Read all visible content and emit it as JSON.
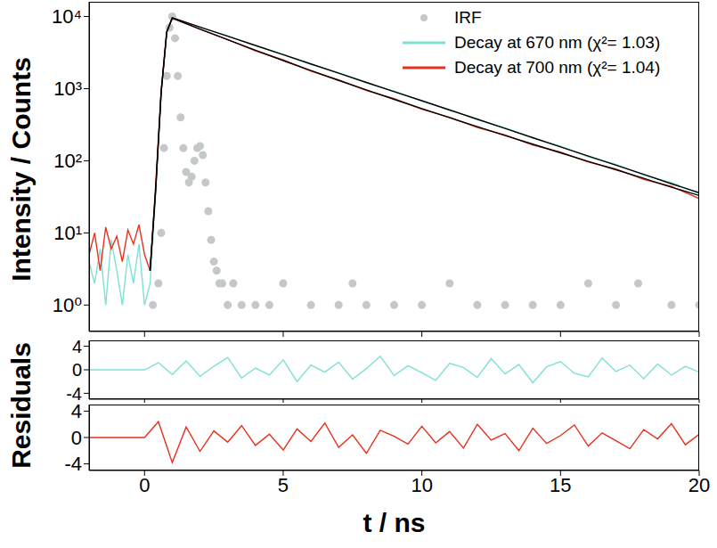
{
  "chart_data": [
    {
      "type": "line",
      "y_label": "Intensity / Counts",
      "xlim": [
        -2,
        20
      ],
      "xticks": [
        0,
        5,
        10,
        15,
        20
      ],
      "ylim": [
        0.43,
        16000
      ],
      "yticks": [
        {
          "value": 1,
          "label": "10⁰"
        },
        {
          "value": 10,
          "label": "10¹"
        },
        {
          "value": 100,
          "label": "10²"
        },
        {
          "value": 1000,
          "label": "10³"
        },
        {
          "value": 10000,
          "label": "10⁴"
        }
      ],
      "log": "y",
      "grid": false,
      "legend": "top-right",
      "tick_labels": "y",
      "series": [
        {
          "name": "IRF",
          "type": "scatter",
          "marker": "circle",
          "color": "#c4c8c8",
          "x": [
            0.3,
            0.5,
            0.6,
            0.7,
            0.8,
            0.9,
            1.0,
            1.1,
            1.2,
            1.3,
            1.4,
            1.5,
            1.6,
            1.7,
            1.8,
            1.9,
            2.0,
            2.1,
            2.2,
            2.3,
            2.4,
            2.5,
            2.6,
            2.7,
            2.8,
            3.0,
            3.2,
            3.5,
            4.0,
            4.5,
            5.0,
            6.0,
            7.0,
            7.5,
            8.0,
            9.0,
            10.0,
            11.0,
            12.0,
            13.0,
            14.0,
            15.0,
            16.0,
            17.0,
            17.8,
            19.0,
            20.0
          ],
          "values": [
            1,
            2,
            10,
            150,
            1500,
            7000,
            10000,
            5000,
            1500,
            400,
            150,
            70,
            50,
            60,
            100,
            150,
            160,
            120,
            50,
            20,
            8,
            4,
            3,
            2,
            2,
            1,
            2,
            1,
            1,
            1,
            2,
            1,
            1,
            2,
            1,
            1,
            1,
            2,
            1,
            1,
            1,
            1,
            2,
            1,
            2,
            1,
            1
          ]
        },
        {
          "name": "Decay at 670 nm (χ²= 1.03)",
          "type": "line",
          "marker": "none",
          "line_style": "solid",
          "color": "#7fe0d6",
          "x": [
            -2,
            -1.8,
            -1.6,
            -1.4,
            -1.2,
            -1,
            -0.8,
            -0.6,
            -0.4,
            -0.2,
            0,
            0.2,
            0.4,
            0.6,
            0.8,
            1,
            2,
            3,
            4,
            5,
            6,
            7,
            8,
            9,
            10,
            11,
            12,
            13,
            14,
            15,
            16,
            17,
            18,
            19,
            20
          ],
          "values": [
            4,
            2,
            6,
            1,
            8,
            3,
            1,
            5,
            2,
            7,
            1,
            2,
            35,
            900,
            6300,
            9600,
            7100,
            5380,
            3920,
            2990,
            2170,
            1660,
            1200,
            925,
            670,
            515,
            370,
            286,
            205,
            160,
            113,
            89,
            63,
            50,
            35
          ]
        },
        {
          "name": "Decay at 700 nm (χ²= 1.04)",
          "type": "line",
          "marker": "none",
          "line_style": "solid",
          "color": "#e8321e",
          "x": [
            -2,
            -1.8,
            -1.6,
            -1.4,
            -1.2,
            -1,
            -0.8,
            -0.6,
            -0.4,
            -0.2,
            0,
            0.2,
            0.4,
            0.6,
            0.8,
            1,
            2,
            3,
            4,
            5,
            6,
            7,
            8,
            9,
            10,
            11,
            12,
            13,
            14,
            15,
            16,
            17,
            18,
            19,
            20
          ],
          "values": [
            5,
            10,
            3,
            12,
            6,
            9,
            4,
            11,
            7,
            13,
            5,
            3,
            45,
            950,
            6200,
            9500,
            6650,
            4800,
            3350,
            2500,
            1750,
            1320,
            940,
            725,
            520,
            400,
            290,
            228,
            165,
            132,
            96,
            77,
            55,
            44,
            30
          ]
        },
        {
          "type": "line",
          "marker": "none",
          "line_style": "solid",
          "color": "#000000",
          "x": [
            0.2,
            0.4,
            0.6,
            0.8,
            1,
            2,
            3,
            4,
            5,
            6,
            7,
            8,
            9,
            10,
            11,
            12,
            13,
            14,
            15,
            16,
            17,
            18,
            19,
            20
          ],
          "values": [
            3,
            38,
            880,
            6100,
            9600,
            7150,
            5330,
            3970,
            2960,
            2200,
            1640,
            1220,
            910,
            680,
            505,
            377,
            281,
            209,
            156,
            116,
            87,
            65,
            48,
            36
          ]
        },
        {
          "type": "line",
          "marker": "none",
          "line_style": "solid",
          "color": "#000000",
          "x": [
            0.2,
            0.4,
            0.6,
            0.8,
            1,
            2,
            3,
            4,
            5,
            6,
            7,
            8,
            9,
            10,
            11,
            12,
            13,
            14,
            15,
            16,
            17,
            18,
            19,
            20
          ],
          "values": [
            3,
            40,
            900,
            6000,
            9500,
            6700,
            4750,
            3400,
            2450,
            1780,
            1300,
            960,
            710,
            530,
            395,
            297,
            224,
            170,
            129,
            98,
            75,
            57,
            43,
            33
          ]
        }
      ]
    },
    {
      "type": "line",
      "y_label": "Residuals",
      "xlim": [
        -2,
        20
      ],
      "xticks": [
        0,
        5,
        10,
        15,
        20
      ],
      "ylim": [
        -5,
        5
      ],
      "yticks": [
        -4,
        0,
        4
      ],
      "tick_labels": "y",
      "series": [
        {
          "type": "line",
          "marker": "none",
          "line_style": "solid",
          "color": "#7fe0d6",
          "x": [
            -2,
            0,
            0.5,
            1,
            1.5,
            2,
            2.5,
            3,
            3.5,
            4,
            4.5,
            5,
            5.5,
            6,
            6.5,
            7,
            7.5,
            8,
            8.5,
            9,
            9.5,
            10,
            10.5,
            11,
            11.5,
            12,
            12.5,
            13,
            13.5,
            14,
            14.5,
            15,
            15.5,
            16,
            16.5,
            17,
            17.5,
            18,
            18.5,
            19,
            19.5,
            20
          ],
          "values": [
            0,
            0,
            1.2,
            -0.8,
            1.5,
            -1.1,
            0.6,
            2.1,
            -1.4,
            0.3,
            -0.9,
            1.7,
            -2.0,
            0.8,
            -0.4,
            1.3,
            -1.6,
            0.2,
            2.3,
            -1.0,
            0.7,
            -0.5,
            -1.8,
            1.1,
            0.4,
            -1.3,
            1.9,
            -0.7,
            0.9,
            -2.2,
            0.5,
            1.4,
            -0.6,
            -1.2,
            2.0,
            -0.3,
            0.8,
            -1.5,
            1.0,
            -0.9,
            0.6,
            -0.4
          ]
        }
      ]
    },
    {
      "type": "line",
      "x_label": "t / ns",
      "xlim": [
        -2,
        20
      ],
      "xticks": [
        0,
        5,
        10,
        15,
        20
      ],
      "ylim": [
        -5,
        5
      ],
      "yticks": [
        -4,
        0,
        4
      ],
      "tick_labels": true,
      "series": [
        {
          "type": "line",
          "marker": "none",
          "line_style": "solid",
          "color": "#e8321e",
          "x": [
            -2,
            0,
            0.5,
            1,
            1.5,
            2,
            2.5,
            3,
            3.5,
            4,
            4.5,
            5,
            5.5,
            6,
            6.5,
            7,
            7.5,
            8,
            8.5,
            9,
            9.5,
            10,
            10.5,
            11,
            11.5,
            12,
            12.5,
            13,
            13.5,
            14,
            14.5,
            15,
            15.5,
            16,
            16.5,
            17,
            17.5,
            18,
            18.5,
            19,
            19.5,
            20
          ],
          "values": [
            0,
            0,
            2.4,
            -3.8,
            1.6,
            -2.1,
            1.0,
            -0.7,
            1.8,
            -1.2,
            0.5,
            -1.9,
            1.3,
            -0.6,
            2.2,
            -1.5,
            0.4,
            -2.4,
            1.1,
            0.2,
            -1.0,
            1.7,
            -0.8,
            0.9,
            -1.6,
            2.0,
            -0.4,
            0.6,
            -2.0,
            1.4,
            -0.9,
            0.3,
            1.9,
            -1.3,
            0.7,
            -0.5,
            -1.7,
            1.2,
            -0.2,
            2.1,
            -1.1,
            0.5
          ]
        }
      ]
    }
  ]
}
